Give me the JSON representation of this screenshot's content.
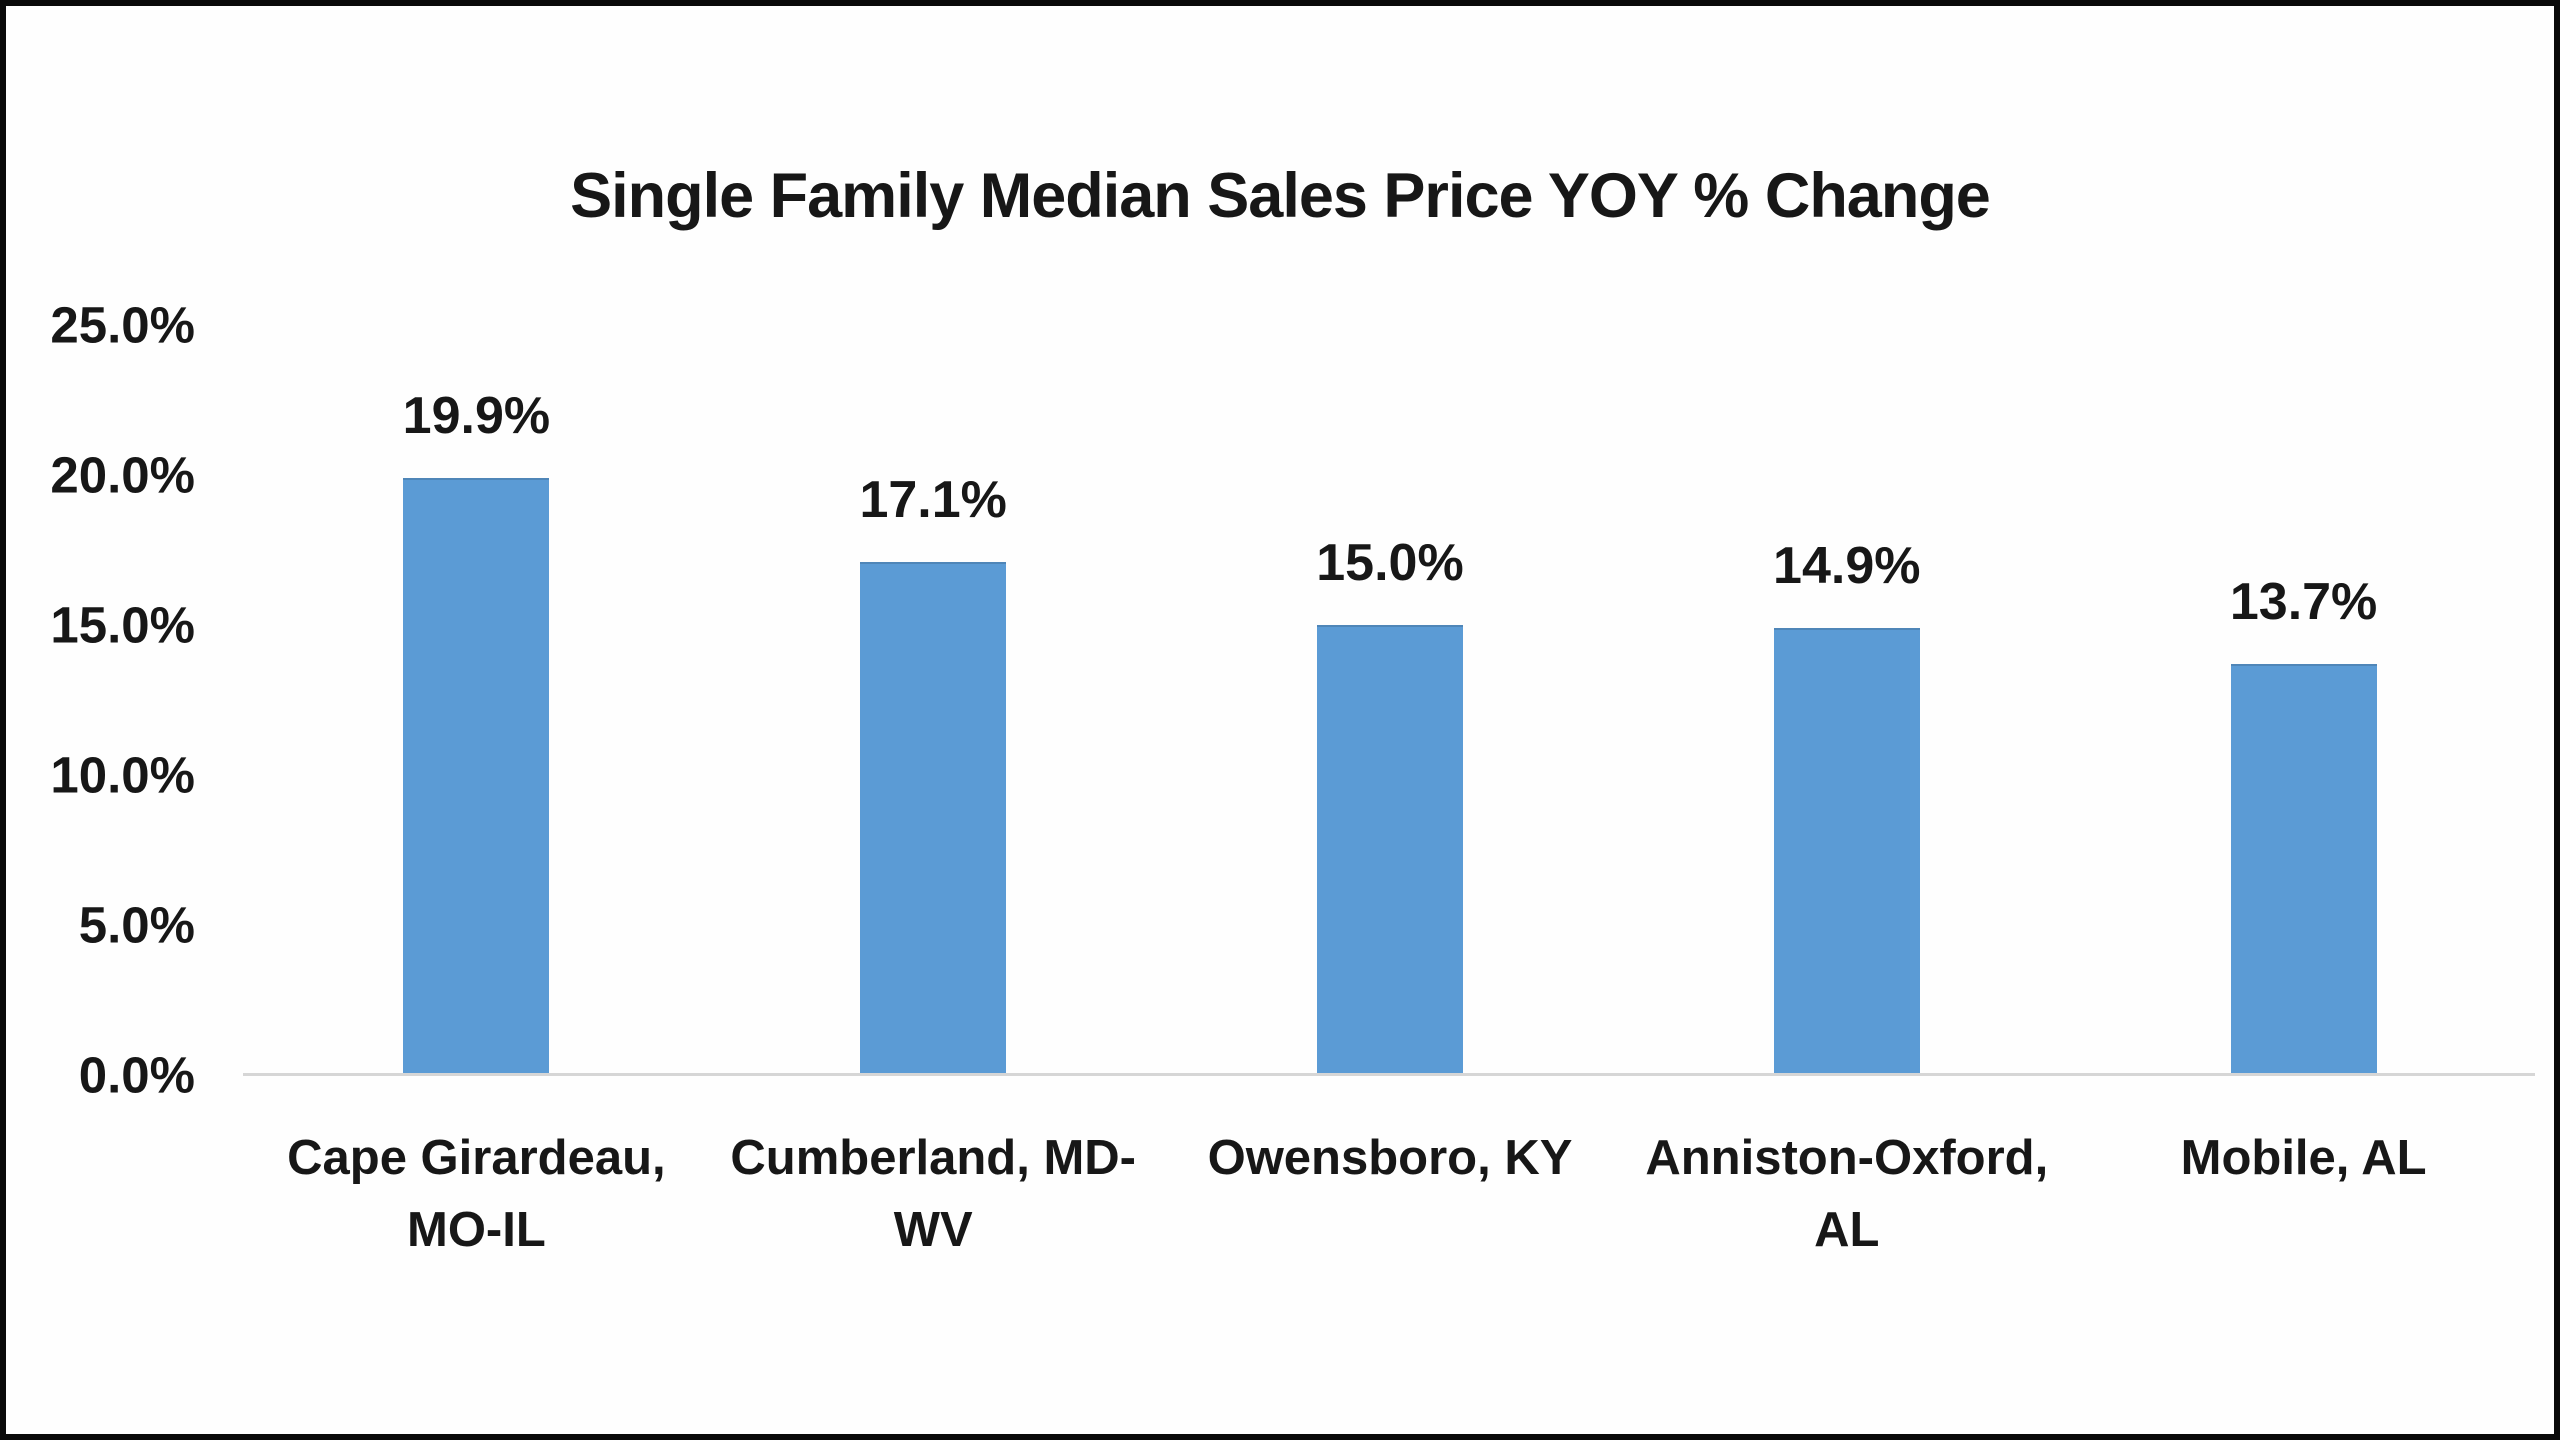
{
  "frame": {
    "border_color": "#0a0a0a",
    "background": "#ffffff"
  },
  "chart_data": {
    "type": "bar",
    "title": "Single Family Median Sales Price YOY % Change",
    "categories": [
      "Cape Girardeau, MO-IL",
      "Cumberland, MD-WV",
      "Owensboro, KY",
      "Anniston-Oxford, AL",
      "Mobile, AL"
    ],
    "category_lines": [
      {
        "line1": "Cape Girardeau,",
        "line2": "MO-IL"
      },
      {
        "line1": "Cumberland, MD-",
        "line2": "WV"
      },
      {
        "line1": "Owensboro, KY",
        "line2": ""
      },
      {
        "line1": "Anniston-Oxford,",
        "line2": "AL"
      },
      {
        "line1": "Mobile, AL",
        "line2": ""
      }
    ],
    "values": [
      19.9,
      17.1,
      15.0,
      14.9,
      13.7
    ],
    "bar_labels": [
      "19.9%",
      "17.1%",
      "15.0%",
      "14.9%",
      "13.7%"
    ],
    "y_ticks": [
      {
        "label": "25.0%",
        "value": 25
      },
      {
        "label": "20.0%",
        "value": 20
      },
      {
        "label": "15.0%",
        "value": 15
      },
      {
        "label": "10.0%",
        "value": 10
      },
      {
        "label": "5.0%",
        "value": 5
      },
      {
        "label": "0.0%",
        "value": 0
      }
    ],
    "ylim": [
      0,
      25
    ],
    "xlabel": "",
    "ylabel": "",
    "grid": false,
    "legend_position": "none",
    "bar_color": "#5b9bd5",
    "baseline_color": "#d6d6d6",
    "text_color": "#171717"
  }
}
